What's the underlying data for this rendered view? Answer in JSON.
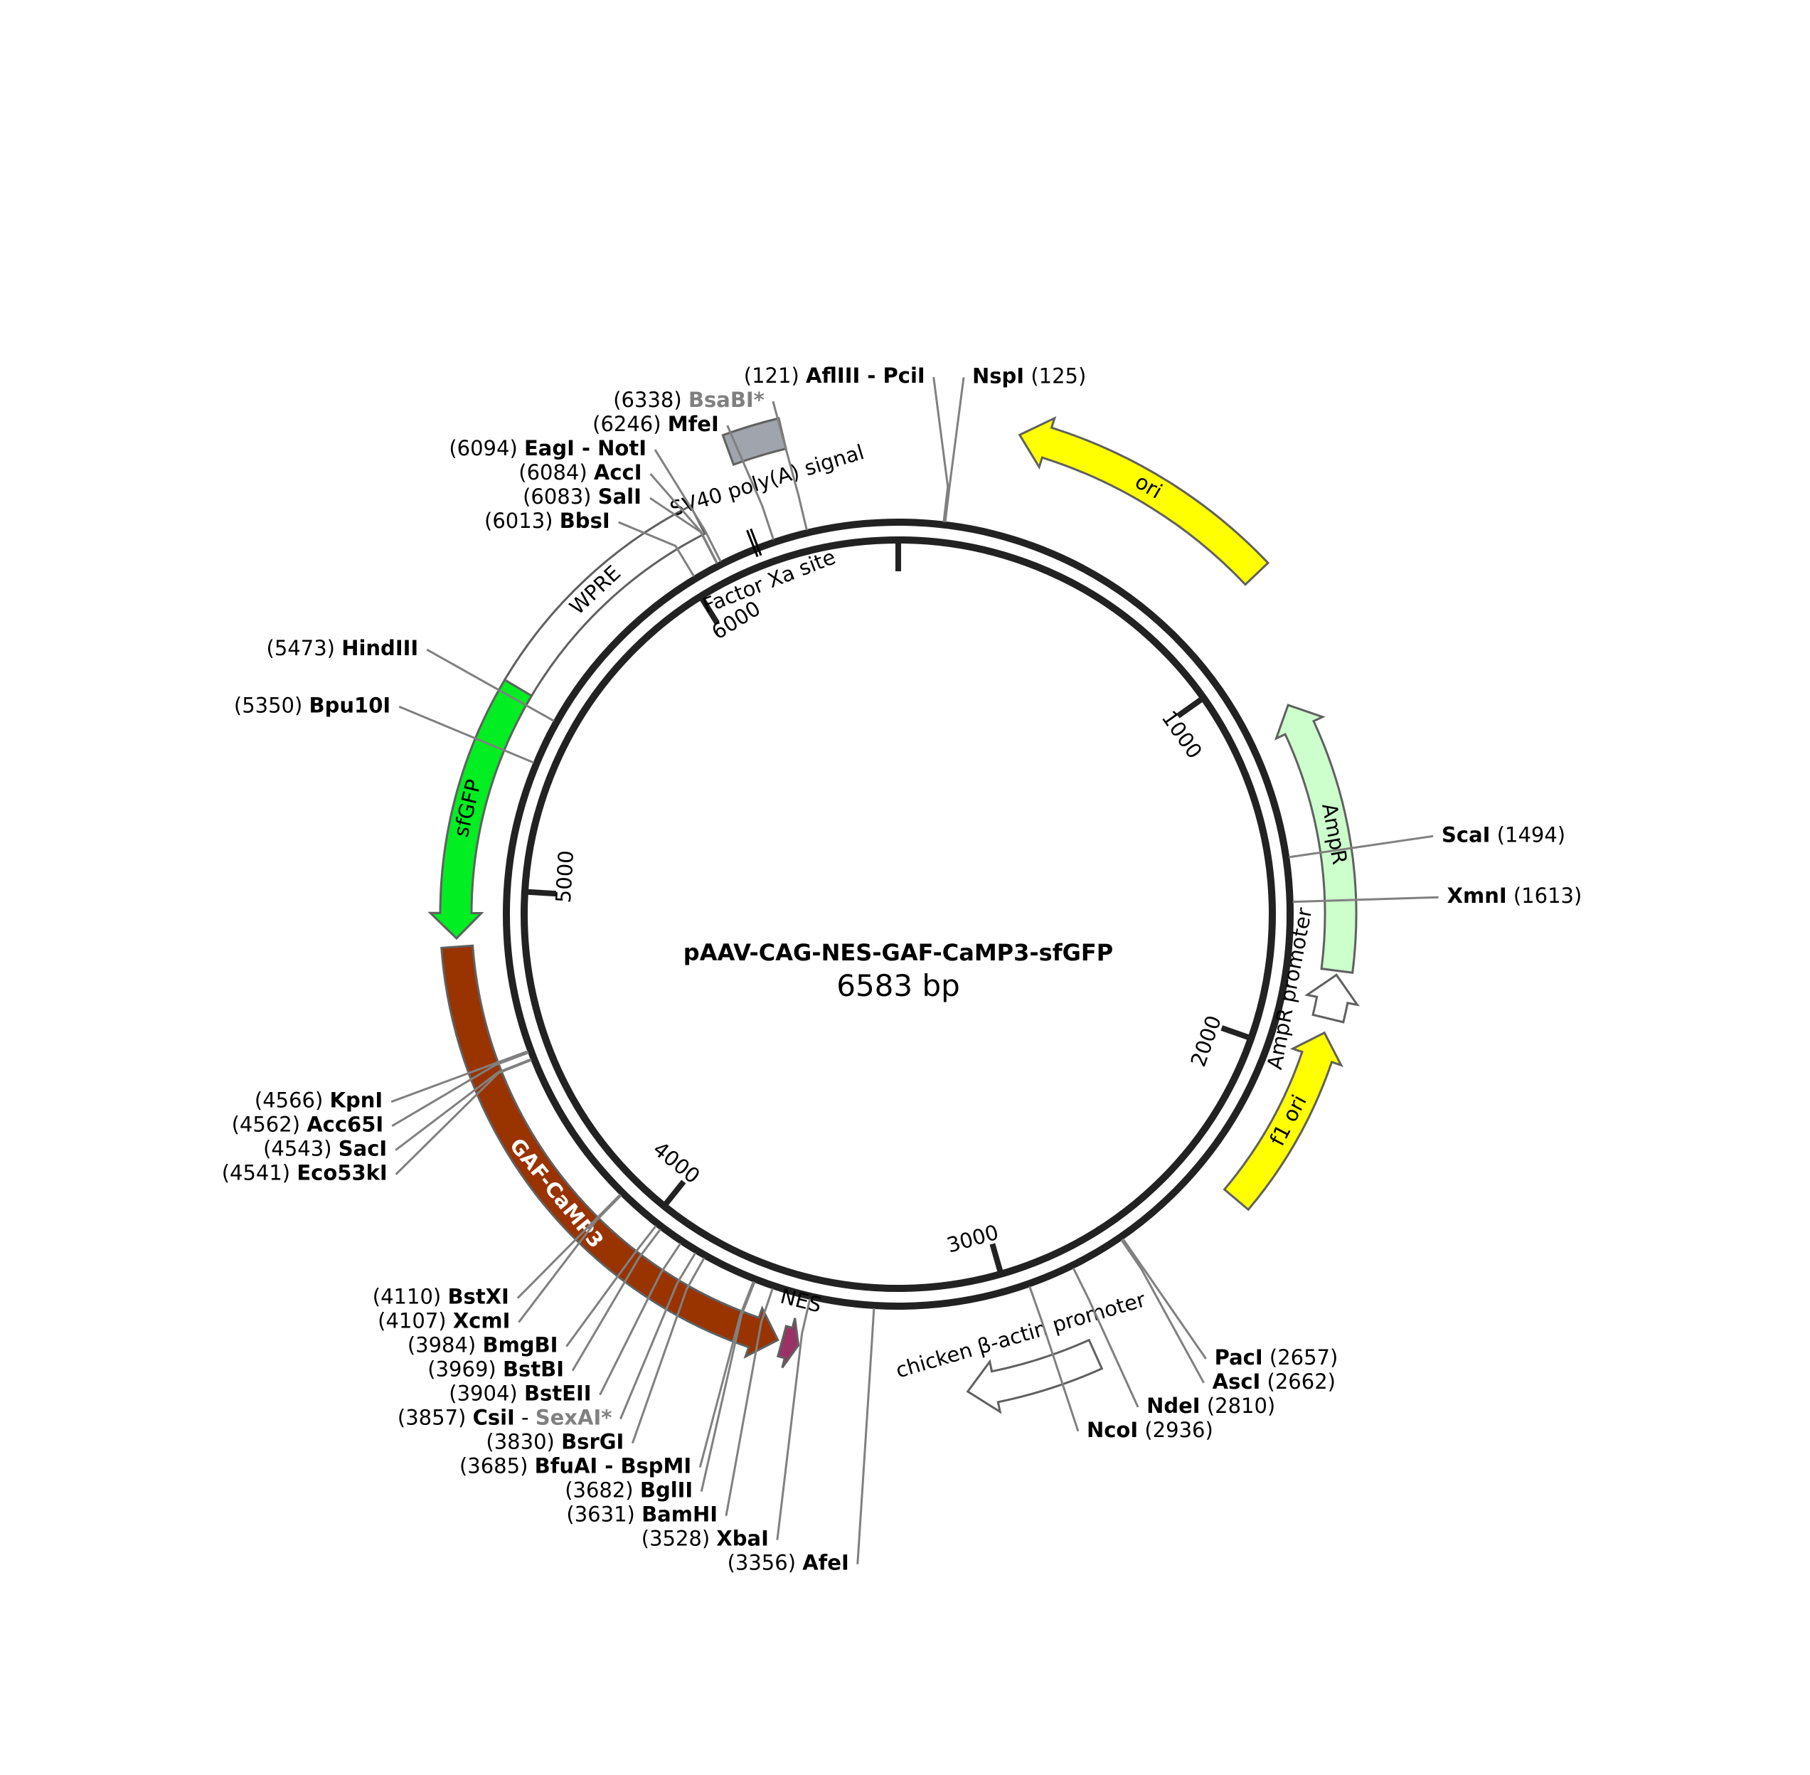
{
  "plasmid": {
    "name": "pAAV-CAG-NES-GAF-CaMP3-sfGFP",
    "size_label": "6583 bp",
    "length": 6583
  },
  "ticks": [
    {
      "pos": 0,
      "label": ""
    },
    {
      "pos": 1000,
      "label": "1000"
    },
    {
      "pos": 2000,
      "label": "2000"
    },
    {
      "pos": 3000,
      "label": "3000"
    },
    {
      "pos": 4000,
      "label": "4000"
    },
    {
      "pos": 5000,
      "label": "5000"
    },
    {
      "pos": 6000,
      "label": "6000"
    }
  ],
  "features": [
    {
      "id": "ori",
      "label": "ori",
      "start": 260,
      "end": 850,
      "direction": "ccw",
      "ring": 0,
      "fill": "#ffff00",
      "label_color": "#000000"
    },
    {
      "id": "ampr",
      "label": "AmpR",
      "start": 1130,
      "end": 1780,
      "direction": "ccw",
      "ring": 1,
      "fill": "#ccffcc",
      "label_color": "#000000"
    },
    {
      "id": "ampr-promoter",
      "label": "AmpR promoter",
      "start": 1790,
      "end": 1895,
      "direction": "ccw",
      "ring": 1,
      "fill": "#ffffff",
      "label_color": "#000000"
    },
    {
      "id": "f1-ori",
      "label": "f1 ori",
      "start": 1930,
      "end": 2380,
      "direction": "ccw",
      "ring": 1,
      "fill": "#ffff00",
      "label_color": "#000000"
    },
    {
      "id": "cba-promoter",
      "label": "chicken β-actin promoter",
      "start": 2850,
      "end": 3140,
      "direction": "cw",
      "ring": 2,
      "fill": "#ffffff",
      "label_color": "#000000"
    },
    {
      "id": "nes",
      "label": "NES",
      "start": 3530,
      "end": 3570,
      "direction": "ccw",
      "ring": 1,
      "fill": "#993366",
      "label_color": "#000000"
    },
    {
      "id": "gaf-camp3",
      "label": "GAF-CaMP3",
      "start": 3580,
      "end": 4860,
      "direction": "ccw",
      "ring": 1,
      "fill": "#993300",
      "label_color": "#ffffff"
    },
    {
      "id": "sfgfp",
      "label": "sfGFP",
      "start": 4880,
      "end": 5500,
      "direction": "ccw",
      "ring": 1,
      "fill": "#00ee22",
      "label_color": "#000000"
    },
    {
      "id": "wpre",
      "label": "WPRE",
      "start": 5500,
      "end": 6090,
      "direction": "none",
      "ring": 1,
      "fill": "#ffffff",
      "label_color": "#000000"
    },
    {
      "id": "sv40-polya",
      "label": "SV40 poly(A) signal",
      "start": 6215,
      "end": 6335,
      "direction": "none",
      "ring": 0,
      "fill": "#a0a4ac",
      "label_color": "#000000"
    },
    {
      "id": "factor-xa",
      "label": "Factor Xa site",
      "start": 6190,
      "end": 6200,
      "direction": "none",
      "ring": 3,
      "fill": "#000000",
      "label_color": "#000000"
    }
  ],
  "sites": [
    {
      "pos": 121,
      "position_label": "(121)",
      "name": "AflIII - PciI",
      "side": "left",
      "greyed": false
    },
    {
      "pos": 125,
      "position_label": "(125)",
      "name": "NspI",
      "side": "right",
      "greyed": false
    },
    {
      "pos": 6338,
      "position_label": "(6338)",
      "name": "BsaBI*",
      "side": "left",
      "greyed": true
    },
    {
      "pos": 6246,
      "position_label": "(6246)",
      "name": "MfeI",
      "side": "left",
      "greyed": false
    },
    {
      "pos": 6094,
      "position_label": "(6094)",
      "name": "EagI - NotI",
      "side": "left",
      "greyed": false
    },
    {
      "pos": 6084,
      "position_label": "(6084)",
      "name": "AccI",
      "side": "left",
      "greyed": false
    },
    {
      "pos": 6083,
      "position_label": "(6083)",
      "name": "SalI",
      "side": "left",
      "greyed": false
    },
    {
      "pos": 6013,
      "position_label": "(6013)",
      "name": "BbsI",
      "side": "left",
      "greyed": false
    },
    {
      "pos": 5473,
      "position_label": "(5473)",
      "name": "HindIII",
      "side": "left",
      "greyed": false
    },
    {
      "pos": 5350,
      "position_label": "(5350)",
      "name": "Bpu10I",
      "side": "left",
      "greyed": false
    },
    {
      "pos": 1494,
      "position_label": "(1494)",
      "name": "ScaI",
      "side": "right",
      "greyed": false
    },
    {
      "pos": 1613,
      "position_label": "(1613)",
      "name": "XmnI",
      "side": "right",
      "greyed": false
    },
    {
      "pos": 4566,
      "position_label": "(4566)",
      "name": "KpnI",
      "side": "left",
      "greyed": false
    },
    {
      "pos": 4562,
      "position_label": "(4562)",
      "name": "Acc65I",
      "side": "left",
      "greyed": false
    },
    {
      "pos": 4543,
      "position_label": "(4543)",
      "name": "SacI",
      "side": "left",
      "greyed": false
    },
    {
      "pos": 4541,
      "position_label": "(4541)",
      "name": "Eco53kI",
      "side": "left",
      "greyed": false
    },
    {
      "pos": 4110,
      "position_label": "(4110)",
      "name": "BstXI",
      "side": "left",
      "greyed": false
    },
    {
      "pos": 4107,
      "position_label": "(4107)",
      "name": "XcmI",
      "side": "left",
      "greyed": false
    },
    {
      "pos": 3984,
      "position_label": "(3984)",
      "name": "BmgBI",
      "side": "left",
      "greyed": false
    },
    {
      "pos": 3969,
      "position_label": "(3969)",
      "name": "BstBI",
      "side": "left",
      "greyed": false
    },
    {
      "pos": 3904,
      "position_label": "(3904)",
      "name": "BstEII",
      "side": "left",
      "greyed": false
    },
    {
      "pos": 3857,
      "position_label": "(3857)",
      "name": "CsiI",
      "name2": "SexAI*",
      "side": "left",
      "greyed": false
    },
    {
      "pos": 3830,
      "position_label": "(3830)",
      "name": "BsrGI",
      "side": "left",
      "greyed": false
    },
    {
      "pos": 3685,
      "position_label": "(3685)",
      "name": "BfuAI - BspMI",
      "side": "left",
      "greyed": false
    },
    {
      "pos": 3682,
      "position_label": "(3682)",
      "name": "BglII",
      "side": "left",
      "greyed": false
    },
    {
      "pos": 3631,
      "position_label": "(3631)",
      "name": "BamHI",
      "side": "left",
      "greyed": false
    },
    {
      "pos": 3528,
      "position_label": "(3528)",
      "name": "XbaI",
      "side": "left",
      "greyed": false
    },
    {
      "pos": 3356,
      "position_label": "(3356)",
      "name": "AfeI",
      "side": "left",
      "greyed": false
    },
    {
      "pos": 2936,
      "position_label": "(2936)",
      "name": "NcoI",
      "side": "right",
      "greyed": false
    },
    {
      "pos": 2810,
      "position_label": "(2810)",
      "name": "NdeI",
      "side": "right",
      "greyed": false
    },
    {
      "pos": 2662,
      "position_label": "(2662)",
      "name": "AscI",
      "side": "right",
      "greyed": false
    },
    {
      "pos": 2657,
      "position_label": "(2657)",
      "name": "PacI",
      "side": "right",
      "greyed": false
    }
  ],
  "colors": {
    "backbone": "#222222",
    "leader": "#808080",
    "feature_stroke": "#606060"
  }
}
